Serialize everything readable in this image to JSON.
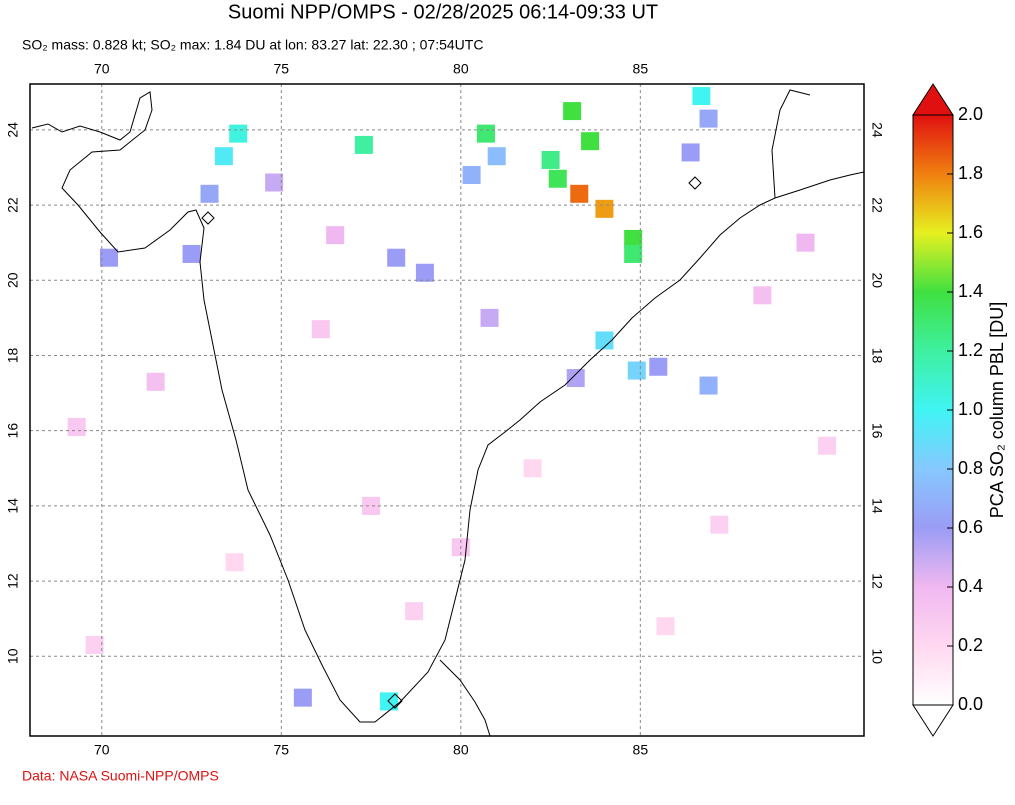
{
  "title": "Suomi NPP/OMPS - 02/28/2025 06:14-09:33 UT",
  "subtitle": "SO₂ mass: 0.828 kt; SO₂ max: 1.84 DU at lon: 83.27 lat: 22.30 ; 07:54UTC",
  "credit": "Data: NASA Suomi-NPP/OMPS",
  "map": {
    "xlim": [
      68,
      91.23
    ],
    "ylim": [
      7.88,
      25.22
    ],
    "lon_ticks": [
      70,
      75,
      80,
      85
    ],
    "lat_ticks": [
      10,
      12,
      14,
      16,
      18,
      20,
      22,
      24
    ]
  },
  "colorbar": {
    "label": "PCA SO₂ column PBL [DU]",
    "lim": [
      0,
      2
    ],
    "ticks": [
      {
        "value": 0,
        "label": "0.0"
      },
      {
        "value": 0.2,
        "label": "0.2"
      },
      {
        "value": 0.4,
        "label": "0.4"
      },
      {
        "value": 0.6,
        "label": "0.6"
      },
      {
        "value": 0.8,
        "label": "0.8"
      },
      {
        "value": 1,
        "label": "1.0"
      },
      {
        "value": 1.2,
        "label": "1.2"
      },
      {
        "value": 1.4,
        "label": "1.4"
      },
      {
        "value": 1.6,
        "label": "1.6"
      },
      {
        "value": 1.8,
        "label": "1.8"
      },
      {
        "value": 2,
        "label": "2.0"
      }
    ]
  },
  "cells": [
    {
      "lon": 83.3,
      "lat": 22.3,
      "value": 1.84
    },
    {
      "lon": 84.0,
      "lat": 21.9,
      "value": 1.75
    },
    {
      "lon": 84.8,
      "lat": 21.1,
      "value": 1.4
    },
    {
      "lon": 84.8,
      "lat": 20.7,
      "value": 1.3
    },
    {
      "lon": 82.7,
      "lat": 22.7,
      "value": 1.35
    },
    {
      "lon": 82.5,
      "lat": 23.2,
      "value": 1.25
    },
    {
      "lon": 83.6,
      "lat": 23.7,
      "value": 1.4
    },
    {
      "lon": 83.1,
      "lat": 24.5,
      "value": 1.4
    },
    {
      "lon": 80.7,
      "lat": 23.9,
      "value": 1.3
    },
    {
      "lon": 77.3,
      "lat": 23.6,
      "value": 1.2
    },
    {
      "lon": 73.8,
      "lat": 23.9,
      "value": 1.05
    },
    {
      "lon": 73.4,
      "lat": 23.3,
      "value": 0.95
    },
    {
      "lon": 86.7,
      "lat": 24.9,
      "value": 1.0
    },
    {
      "lon": 78.0,
      "lat": 8.8,
      "value": 1.0
    },
    {
      "lon": 84.0,
      "lat": 18.4,
      "value": 0.9
    },
    {
      "lon": 84.9,
      "lat": 17.6,
      "value": 0.85
    },
    {
      "lon": 86.9,
      "lat": 17.2,
      "value": 0.7
    },
    {
      "lon": 73.0,
      "lat": 22.3,
      "value": 0.65
    },
    {
      "lon": 72.5,
      "lat": 20.7,
      "value": 0.6
    },
    {
      "lon": 70.2,
      "lat": 20.6,
      "value": 0.6
    },
    {
      "lon": 78.2,
      "lat": 20.6,
      "value": 0.6
    },
    {
      "lon": 79.0,
      "lat": 20.2,
      "value": 0.6
    },
    {
      "lon": 80.3,
      "lat": 22.8,
      "value": 0.7
    },
    {
      "lon": 81.0,
      "lat": 23.3,
      "value": 0.75
    },
    {
      "lon": 86.4,
      "lat": 23.4,
      "value": 0.6
    },
    {
      "lon": 86.9,
      "lat": 24.3,
      "value": 0.65
    },
    {
      "lon": 83.2,
      "lat": 17.4,
      "value": 0.55
    },
    {
      "lon": 85.5,
      "lat": 17.7,
      "value": 0.6
    },
    {
      "lon": 75.6,
      "lat": 8.9,
      "value": 0.6
    },
    {
      "lon": 80.8,
      "lat": 19.0,
      "value": 0.5
    },
    {
      "lon": 74.8,
      "lat": 22.6,
      "value": 0.5
    },
    {
      "lon": 76.5,
      "lat": 21.2,
      "value": 0.4
    },
    {
      "lon": 71.5,
      "lat": 17.3,
      "value": 0.35
    },
    {
      "lon": 69.3,
      "lat": 16.1,
      "value": 0.3
    },
    {
      "lon": 77.5,
      "lat": 14.0,
      "value": 0.3
    },
    {
      "lon": 78.7,
      "lat": 11.2,
      "value": 0.25
    },
    {
      "lon": 88.4,
      "lat": 19.6,
      "value": 0.35
    },
    {
      "lon": 89.6,
      "lat": 21.0,
      "value": 0.4
    },
    {
      "lon": 87.2,
      "lat": 13.5,
      "value": 0.25
    },
    {
      "lon": 73.7,
      "lat": 12.5,
      "value": 0.2
    },
    {
      "lon": 82.0,
      "lat": 15.0,
      "value": 0.2
    },
    {
      "lon": 69.8,
      "lat": 10.3,
      "value": 0.25
    },
    {
      "lon": 85.7,
      "lat": 10.8,
      "value": 0.2
    },
    {
      "lon": 90.2,
      "lat": 15.6,
      "value": 0.25
    },
    {
      "lon": 76.1,
      "lat": 18.7,
      "value": 0.3
    },
    {
      "lon": 80.0,
      "lat": 12.9,
      "value": 0.3
    }
  ]
}
